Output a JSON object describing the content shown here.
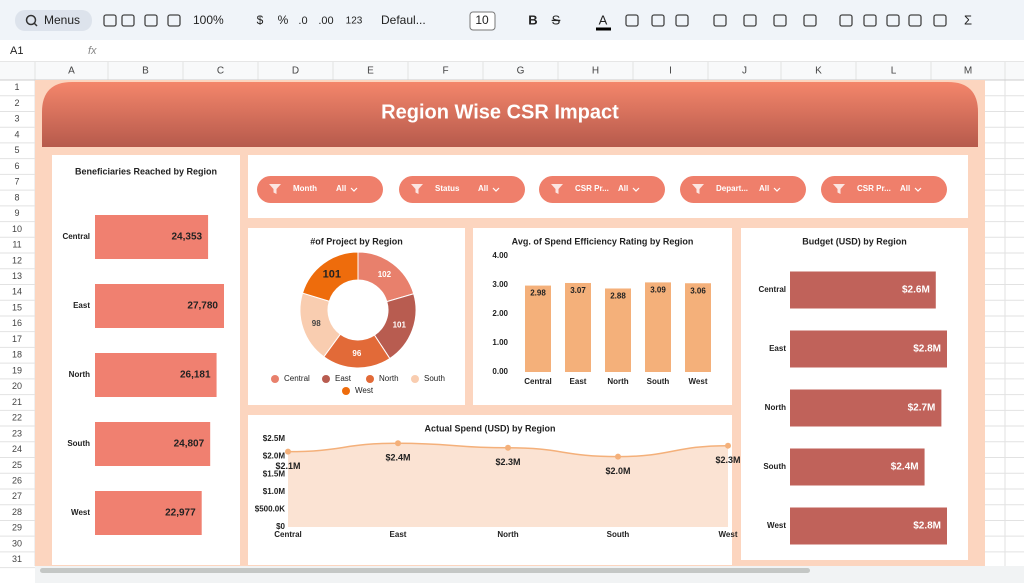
{
  "toolbar": {
    "menus": "Menus",
    "zoom": "100%",
    "currency": "$",
    "percent": "%",
    "decrease_decimal": ".0",
    "increase_decimal": ".00",
    "number_format": "123",
    "font": "Defaul...",
    "font_size": "10",
    "bold": "B",
    "strikethrough": "S",
    "text_color": "A",
    "functions": "Σ"
  },
  "formula_bar": {
    "cell_ref": "A1",
    "fx": "fx"
  },
  "columns": [
    "A",
    "B",
    "C",
    "D",
    "E",
    "F",
    "G",
    "H",
    "I",
    "J",
    "K",
    "L",
    "M"
  ],
  "rows": [
    1,
    2,
    3,
    4,
    5,
    6,
    7,
    8,
    9,
    10,
    11,
    12,
    13,
    14,
    15,
    16,
    17,
    18,
    19,
    20,
    21,
    22,
    23,
    24,
    25,
    26,
    27,
    28,
    29,
    30,
    31
  ],
  "dashboard": {
    "title": "Region Wise CSR Impact",
    "filters": [
      {
        "label": "Month",
        "value": "All"
      },
      {
        "label": "Status",
        "value": "All"
      },
      {
        "label": "CSR Pr...",
        "value": "All"
      },
      {
        "label": "Depart...",
        "value": "All"
      },
      {
        "label": "CSR Pr...",
        "value": "All"
      }
    ]
  },
  "chart_data": [
    {
      "type": "hbar",
      "title": "Beneficiaries Reached by Region",
      "categories": [
        "Central",
        "East",
        "North",
        "South",
        "West"
      ],
      "values": [
        24353,
        27780,
        26181,
        24807,
        22977
      ],
      "value_labels": [
        "24,353",
        "27,780",
        "26,181",
        "24,807",
        "22,977"
      ],
      "color": "#f08070"
    },
    {
      "type": "donut",
      "title": "#of Project by Region",
      "categories": [
        "Central",
        "East",
        "North",
        "South",
        "West"
      ],
      "values": [
        102,
        101,
        96,
        98,
        101
      ],
      "colors": [
        "#e8806c",
        "#b85c50",
        "#e26a38",
        "#f9cdb0",
        "#ee6c0c"
      ],
      "legend": "bottom"
    },
    {
      "type": "bar",
      "title": "Avg. of Spend Efficiency Rating by Region",
      "categories": [
        "Central",
        "East",
        "North",
        "South",
        "West"
      ],
      "values": [
        2.98,
        3.07,
        2.88,
        3.09,
        3.06
      ],
      "color": "#f4b07a",
      "ylim": [
        0,
        4
      ],
      "yticks": [
        {
          "value": 0,
          "label": "0.00"
        },
        {
          "value": 1,
          "label": "1.00"
        },
        {
          "value": 2,
          "label": "2.00"
        },
        {
          "value": 3,
          "label": "3.00"
        },
        {
          "value": 4,
          "label": "4.00"
        }
      ]
    },
    {
      "type": "hbar",
      "title": "Budget (USD) by Region",
      "categories": [
        "Central",
        "East",
        "North",
        "South",
        "West"
      ],
      "values": [
        2600000,
        2800000,
        2700000,
        2400000,
        2800000
      ],
      "value_labels": [
        "$2.6M",
        "$2.8M",
        "$2.7M",
        "$2.4M",
        "$2.8M"
      ],
      "color": "#c0625a"
    },
    {
      "type": "area",
      "title": "Actual Spend (USD) by Region",
      "categories": [
        "Central",
        "East",
        "North",
        "South",
        "West"
      ],
      "values": [
        2140000,
        2380000,
        2250000,
        2000000,
        2310000
      ],
      "value_labels": [
        "$2.1M",
        "$2.4M",
        "$2.3M",
        "$2.0M",
        "$2.3M"
      ],
      "color": "#f4b07a",
      "ylim": [
        0,
        2500000
      ],
      "yticks": [
        {
          "value": 0,
          "label": "$0"
        },
        {
          "value": 500000,
          "label": "$500.0K"
        },
        {
          "value": 1000000,
          "label": "$1.0M"
        },
        {
          "value": 1500000,
          "label": "$1.5M"
        },
        {
          "value": 2000000,
          "label": "$2.0M"
        },
        {
          "value": 2500000,
          "label": "$2.5M"
        }
      ]
    }
  ]
}
